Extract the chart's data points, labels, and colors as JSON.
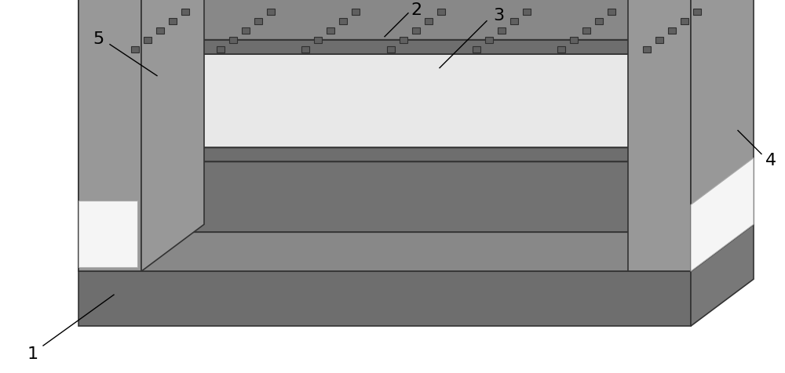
{
  "fig_width": 10.0,
  "fig_height": 4.77,
  "dpi": 100,
  "bg_color": "#ffffff",
  "colors": {
    "sub_top": "#8c8c8c",
    "sub_front": "#6e6e6e",
    "sub_right": "#787878",
    "sub_top2": "#a0a0a0",
    "sub_front2": "#888888",
    "plat_top": "#909090",
    "plat_front": "#727272",
    "plat_right": "#7a7a7a",
    "elec_bar_top": "#888888",
    "elec_bar_front": "#6e6e6e",
    "elec_bar_right": "#787878",
    "active_top": "#c0c0c0",
    "active_front": "#b0b0b0",
    "active_right": "#a8a8a8",
    "left_elec_top": "#b0b0b0",
    "left_elec_front": "#f2f2f2",
    "left_elec_right": "#989898",
    "left_elec_back": "#888888",
    "right_elec_top": "#b8b8b8",
    "right_elec_front": "#f2f2f2",
    "right_elec_left": "#989898",
    "nano": "#606060",
    "nano_edge": "#303030",
    "outline": "#333333"
  },
  "nrows": 5,
  "ncols": 7
}
